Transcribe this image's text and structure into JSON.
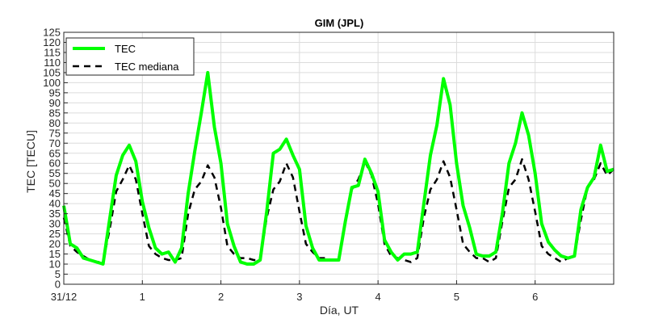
{
  "chart_data": {
    "type": "line",
    "title": "GIM (JPL)",
    "xlabel": "Día, UT",
    "ylabel": "TEC [TECU]",
    "xlim": [
      0,
      7
    ],
    "ylim": [
      0,
      125
    ],
    "x_ticks": [
      0,
      1,
      2,
      3,
      4,
      5,
      6
    ],
    "x_tick_labels": [
      "31/12",
      "1",
      "2",
      "3",
      "4",
      "5",
      "6"
    ],
    "y_ticks": [
      0,
      5,
      10,
      15,
      20,
      25,
      30,
      35,
      40,
      45,
      50,
      55,
      60,
      65,
      70,
      75,
      80,
      85,
      90,
      95,
      100,
      105,
      110,
      115,
      120,
      125
    ],
    "grid": true,
    "legend_position": "top-left",
    "x": [
      0,
      0.083,
      0.167,
      0.25,
      0.333,
      0.417,
      0.5,
      0.583,
      0.667,
      0.75,
      0.833,
      0.917,
      1,
      1.083,
      1.167,
      1.25,
      1.333,
      1.417,
      1.5,
      1.583,
      1.667,
      1.75,
      1.833,
      1.917,
      2,
      2.083,
      2.167,
      2.25,
      2.333,
      2.417,
      2.5,
      2.583,
      2.667,
      2.75,
      2.833,
      2.917,
      3,
      3.083,
      3.167,
      3.25,
      3.333,
      3.417,
      3.5,
      3.583,
      3.667,
      3.75,
      3.833,
      3.917,
      4,
      4.083,
      4.167,
      4.25,
      4.333,
      4.417,
      4.5,
      4.583,
      4.667,
      4.75,
      4.833,
      4.917,
      5,
      5.083,
      5.167,
      5.25,
      5.333,
      5.417,
      5.5,
      5.583,
      5.667,
      5.75,
      5.833,
      5.917,
      6,
      6.083,
      6.167,
      6.25,
      6.333,
      6.417,
      6.5,
      6.583,
      6.667,
      6.75,
      6.833,
      6.917,
      7
    ],
    "series": [
      {
        "name": "TEC",
        "color": "#00ff00",
        "style": "solid",
        "values": [
          39,
          20,
          18,
          13,
          12,
          11,
          10,
          32,
          54,
          64,
          69,
          61,
          41,
          28,
          18,
          15,
          16,
          11,
          18,
          45,
          66,
          85,
          105,
          78,
          60,
          30,
          19,
          11,
          10,
          10,
          12,
          36,
          65,
          67,
          72,
          64,
          57,
          29,
          18,
          12,
          12,
          12,
          12,
          31,
          48,
          49,
          62,
          55,
          46,
          22,
          16,
          12,
          15,
          15,
          16,
          40,
          64,
          79,
          102,
          89,
          60,
          39,
          28,
          15,
          14,
          14,
          16,
          35,
          60,
          70,
          85,
          74,
          55,
          30,
          21,
          17,
          14,
          13,
          14,
          37,
          48,
          53,
          69,
          56,
          57
        ]
      },
      {
        "name": "TEC mediana",
        "color": "#000000",
        "style": "dashed",
        "values": [
          33,
          19,
          16,
          14,
          12,
          11,
          11,
          27,
          46,
          52,
          59,
          52,
          35,
          19,
          15,
          13,
          12,
          12,
          13,
          35,
          47,
          51,
          59,
          53,
          38,
          19,
          15,
          13,
          13,
          12,
          12,
          33,
          47,
          51,
          60,
          53,
          36,
          20,
          16,
          13,
          13,
          12,
          12,
          31,
          47,
          52,
          61,
          54,
          40,
          20,
          14,
          13,
          12,
          11,
          13,
          33,
          47,
          52,
          61,
          53,
          37,
          20,
          16,
          13,
          13,
          11,
          13,
          31,
          48,
          52,
          62,
          52,
          36,
          19,
          15,
          13,
          11,
          13,
          14,
          32,
          48,
          52,
          60,
          54,
          57
        ]
      }
    ]
  }
}
